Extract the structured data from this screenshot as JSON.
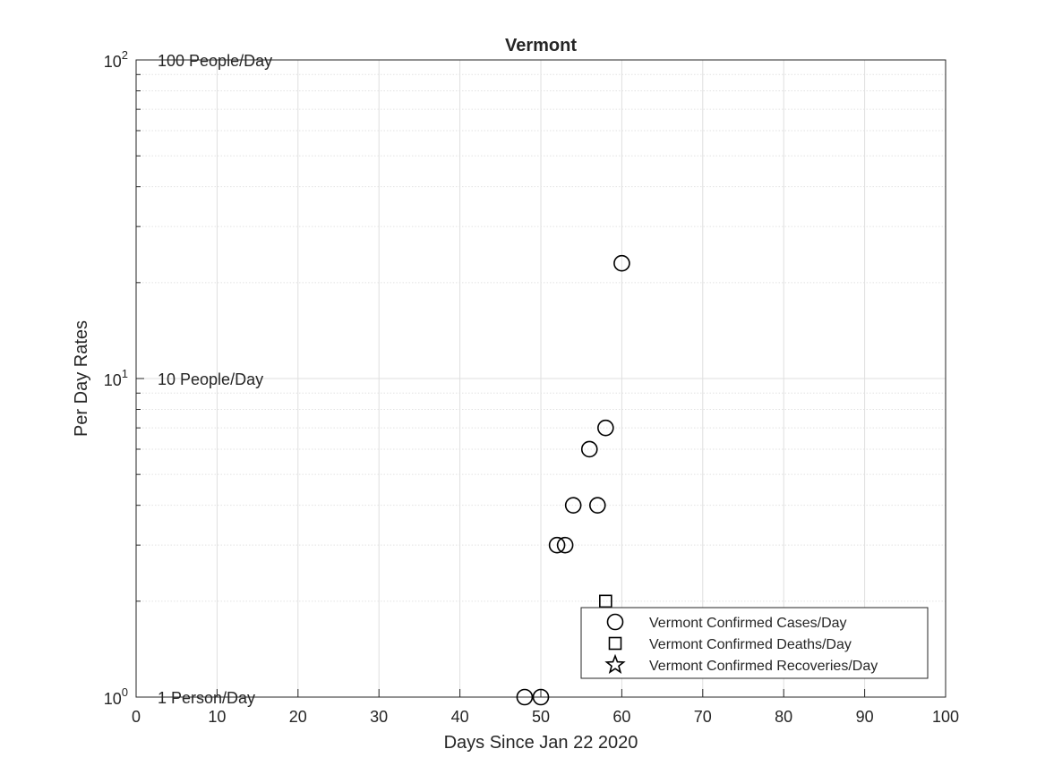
{
  "chart_data": {
    "type": "scatter",
    "title": "Vermont",
    "xlabel": "Days Since Jan 22 2020",
    "ylabel": "Per Day Rates",
    "xlim": [
      0,
      100
    ],
    "ylim": [
      1,
      100
    ],
    "yscale": "log",
    "grid": true,
    "x_ticks": [
      "0",
      "10",
      "20",
      "30",
      "40",
      "50",
      "60",
      "70",
      "80",
      "90",
      "100"
    ],
    "y_ticks": [
      {
        "value": 1,
        "base": "10",
        "exp": "0"
      },
      {
        "value": 10,
        "base": "10",
        "exp": "1"
      },
      {
        "value": 100,
        "base": "10",
        "exp": "2"
      }
    ],
    "reference_labels": [
      {
        "y": 100,
        "text": "100 People/Day"
      },
      {
        "y": 10,
        "text": "10 People/Day"
      },
      {
        "y": 1,
        "text": "1 Person/Day"
      }
    ],
    "legend_position": "bottom-right",
    "series": [
      {
        "name": "Vermont Confirmed Cases/Day",
        "marker": "circle",
        "points": [
          [
            48,
            1
          ],
          [
            50,
            1
          ],
          [
            52,
            3
          ],
          [
            53,
            3
          ],
          [
            54,
            4
          ],
          [
            56,
            6
          ],
          [
            57,
            4
          ],
          [
            58,
            7
          ],
          [
            60,
            23
          ]
        ]
      },
      {
        "name": "Vermont Confirmed Deaths/Day",
        "marker": "square",
        "points": [
          [
            58,
            2
          ]
        ]
      },
      {
        "name": "Vermont Confirmed Recoveries/Day",
        "marker": "star",
        "points": []
      }
    ]
  }
}
